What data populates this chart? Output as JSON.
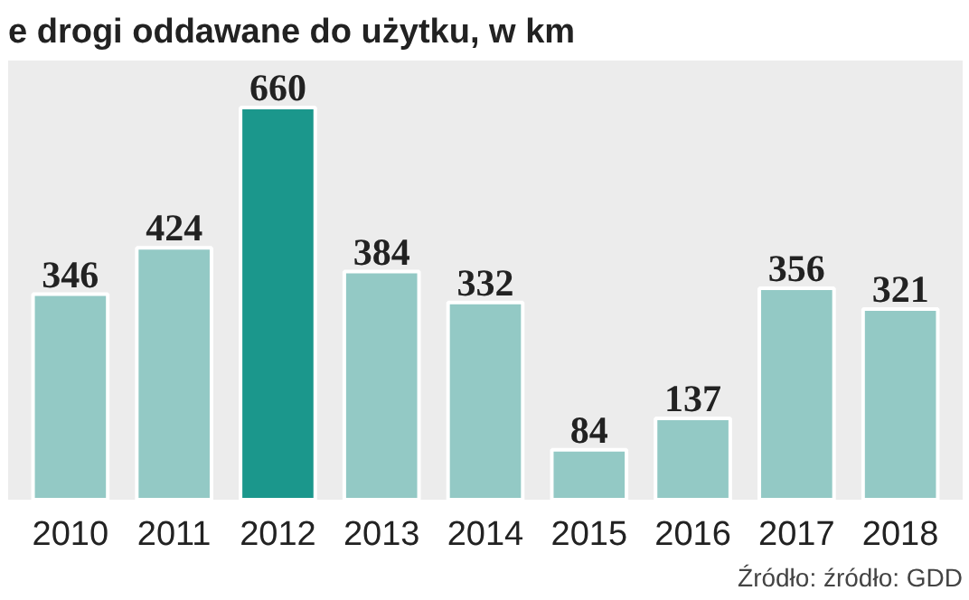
{
  "chart_data": {
    "type": "bar",
    "title": "e drogi oddawane do użytku, w km",
    "categories": [
      "2010",
      "2011",
      "2012",
      "2013",
      "2014",
      "2015",
      "2016",
      "2017",
      "2018"
    ],
    "values": [
      346,
      424,
      660,
      384,
      332,
      84,
      137,
      356,
      321
    ],
    "colors": [
      "#93c9c5",
      "#93c9c5",
      "#1b978c",
      "#93c9c5",
      "#93c9c5",
      "#93c9c5",
      "#93c9c5",
      "#93c9c5",
      "#93c9c5"
    ],
    "data_labels": true,
    "annotations": [
      "Źródło: źródło: GDD"
    ]
  }
}
